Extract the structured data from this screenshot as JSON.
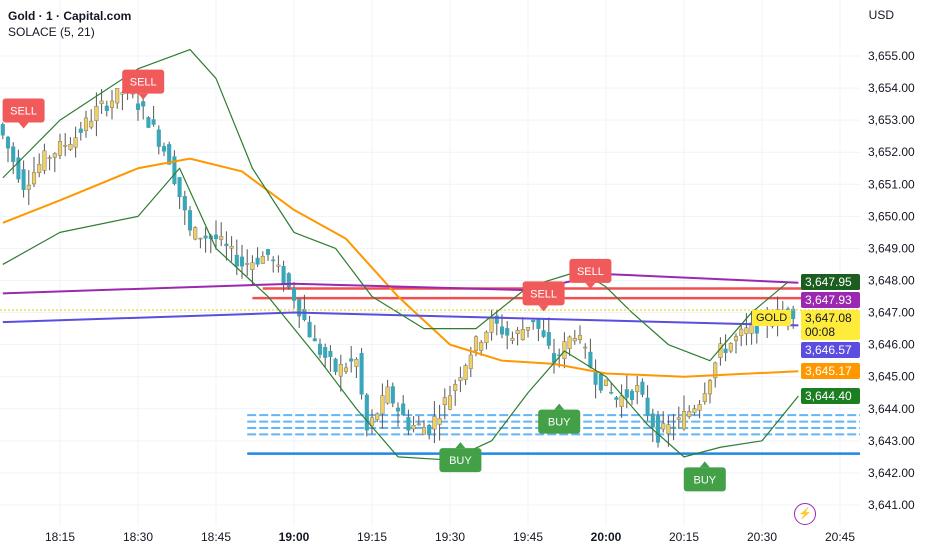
{
  "header": {
    "title": "Gold · 1 · Capital.com",
    "indicator": "SOLACE (5, 21)",
    "currency": "USD"
  },
  "chart_data": {
    "type": "candlestick",
    "title": "Gold · 1 · Capital.com",
    "ylim": [
      3640.5,
      3655.8
    ],
    "y_ticks": [
      3641,
      3642,
      3643,
      3644,
      3645,
      3646,
      3647,
      3648,
      3649,
      3650,
      3651,
      3652,
      3653,
      3654,
      3655
    ],
    "x_ticks": [
      "18:15",
      "18:30",
      "18:45",
      "19:00",
      "19:15",
      "19:30",
      "19:45",
      "20:00",
      "20:15",
      "20:30",
      "20:45"
    ],
    "x_tick_minutes": [
      1095,
      1110,
      1125,
      1140,
      1155,
      1170,
      1185,
      1200,
      1215,
      1230,
      1245
    ],
    "price_path": [
      [
        1084,
        3652.5
      ],
      [
        1088,
        3651
      ],
      [
        1092,
        3651.8
      ],
      [
        1098,
        3652.5
      ],
      [
        1102,
        3653.3
      ],
      [
        1108,
        3654
      ],
      [
        1112,
        3653
      ],
      [
        1116,
        3651.8
      ],
      [
        1120,
        3649.5
      ],
      [
        1125,
        3649.3
      ],
      [
        1130,
        3648.5
      ],
      [
        1135,
        3648.8
      ],
      [
        1140,
        3647.5
      ],
      [
        1144,
        3646
      ],
      [
        1148,
        3645.2
      ],
      [
        1152,
        3645.5
      ],
      [
        1154,
        3643.3
      ],
      [
        1158,
        3644.5
      ],
      [
        1162,
        3643.5
      ],
      [
        1166,
        3643.4
      ],
      [
        1170,
        3644.5
      ],
      [
        1174,
        3645.8
      ],
      [
        1178,
        3646.7
      ],
      [
        1182,
        3646.2
      ],
      [
        1186,
        3646.8
      ],
      [
        1190,
        3645.5
      ],
      [
        1194,
        3646.4
      ],
      [
        1198,
        3645
      ],
      [
        1202,
        3644.3
      ],
      [
        1206,
        3644.6
      ],
      [
        1210,
        3643.2
      ],
      [
        1214,
        3643.6
      ],
      [
        1218,
        3644.3
      ],
      [
        1222,
        3645.8
      ],
      [
        1226,
        3646.3
      ],
      [
        1230,
        3646.7
      ],
      [
        1234,
        3647
      ],
      [
        1237,
        3647.08
      ]
    ],
    "series": [
      {
        "name": "ma-orange",
        "color": "#ff9800",
        "points": [
          [
            1084,
            3649.8
          ],
          [
            1095,
            3650.5
          ],
          [
            1110,
            3651.5
          ],
          [
            1120,
            3651.8
          ],
          [
            1130,
            3651.4
          ],
          [
            1140,
            3650.2
          ],
          [
            1150,
            3649.3
          ],
          [
            1160,
            3647.5
          ],
          [
            1170,
            3646
          ],
          [
            1180,
            3645.5
          ],
          [
            1190,
            3645.4
          ],
          [
            1200,
            3645.1
          ],
          [
            1215,
            3645
          ],
          [
            1237,
            3645.17
          ]
        ]
      },
      {
        "name": "ma-purple",
        "color": "#9c27b0",
        "points": [
          [
            1084,
            3647.6
          ],
          [
            1140,
            3647.9
          ],
          [
            1185,
            3647.7
          ],
          [
            1200,
            3648.2
          ],
          [
            1237,
            3647.93
          ]
        ]
      },
      {
        "name": "ma-indigo",
        "color": "#5b4de0",
        "points": [
          [
            1084,
            3646.7
          ],
          [
            1140,
            3647.0
          ],
          [
            1237,
            3646.6
          ]
        ]
      },
      {
        "name": "band-upper",
        "color": "#2e7d32",
        "points": [
          [
            1084,
            3651.2
          ],
          [
            1095,
            3653
          ],
          [
            1110,
            3654.6
          ],
          [
            1120,
            3655.2
          ],
          [
            1125,
            3654.3
          ],
          [
            1132,
            3651.5
          ],
          [
            1140,
            3649.5
          ],
          [
            1148,
            3649
          ],
          [
            1155,
            3647.5
          ],
          [
            1165,
            3646.5
          ],
          [
            1175,
            3646.5
          ],
          [
            1185,
            3647.8
          ],
          [
            1195,
            3648.3
          ],
          [
            1200,
            3647.8
          ],
          [
            1205,
            3647
          ],
          [
            1212,
            3646
          ],
          [
            1220,
            3645.5
          ],
          [
            1228,
            3647
          ],
          [
            1235,
            3647.95
          ]
        ]
      },
      {
        "name": "band-lower",
        "color": "#2e7d32",
        "points": [
          [
            1084,
            3648.5
          ],
          [
            1095,
            3649.5
          ],
          [
            1110,
            3650
          ],
          [
            1118,
            3651.5
          ],
          [
            1125,
            3649
          ],
          [
            1135,
            3647.5
          ],
          [
            1145,
            3645.5
          ],
          [
            1152,
            3644
          ],
          [
            1160,
            3642.5
          ],
          [
            1170,
            3642.4
          ],
          [
            1178,
            3643
          ],
          [
            1185,
            3644.5
          ],
          [
            1192,
            3645.8
          ],
          [
            1200,
            3645
          ],
          [
            1208,
            3643.5
          ],
          [
            1215,
            3642.5
          ],
          [
            1222,
            3642.8
          ],
          [
            1230,
            3643
          ],
          [
            1237,
            3644.4
          ]
        ]
      }
    ],
    "levels": [
      {
        "price": 3647.75,
        "color": "#f05050",
        "from": 1134
      },
      {
        "price": 3647.45,
        "color": "#f05050",
        "from": 1132
      },
      {
        "price": 3642.6,
        "color": "#1e88e5",
        "from": 1131
      }
    ],
    "zone": {
      "from": 1131,
      "low": 3643.2,
      "high": 3643.8,
      "color": "#64b5f6"
    },
    "signals": [
      {
        "label": "SELL",
        "t": 1088,
        "price": 3653.3,
        "type": "sell"
      },
      {
        "label": "SELL",
        "t": 1111,
        "price": 3654.2,
        "type": "sell"
      },
      {
        "label": "SELL",
        "t": 1188,
        "price": 3647.6,
        "type": "sell"
      },
      {
        "label": "SELL",
        "t": 1197,
        "price": 3648.3,
        "type": "sell"
      },
      {
        "label": "BUY",
        "t": 1172,
        "price": 3642.4,
        "type": "buy"
      },
      {
        "label": "BUY",
        "t": 1191,
        "price": 3643.6,
        "type": "buy"
      },
      {
        "label": "BUY",
        "t": 1219,
        "price": 3641.8,
        "type": "buy"
      }
    ]
  },
  "price_tags": [
    {
      "value": "3,647.95",
      "color": "#1b5e20",
      "price": 3647.95
    },
    {
      "value": "3,647.93",
      "color": "#9c27b0",
      "price": 3647.93
    },
    {
      "value": "3,647.08",
      "sub": "00:08",
      "color": "#ffeb3b",
      "price": 3647.08,
      "dark": true
    },
    {
      "value": "3,646.57",
      "color": "#5b4de0",
      "price": 3646.57
    },
    {
      "value": "3,645.17",
      "color": "#ff9800",
      "price": 3645.17
    },
    {
      "value": "3,644.40",
      "color": "#1b7e20",
      "price": 3644.4
    }
  ],
  "symbol_label": "GOLD"
}
